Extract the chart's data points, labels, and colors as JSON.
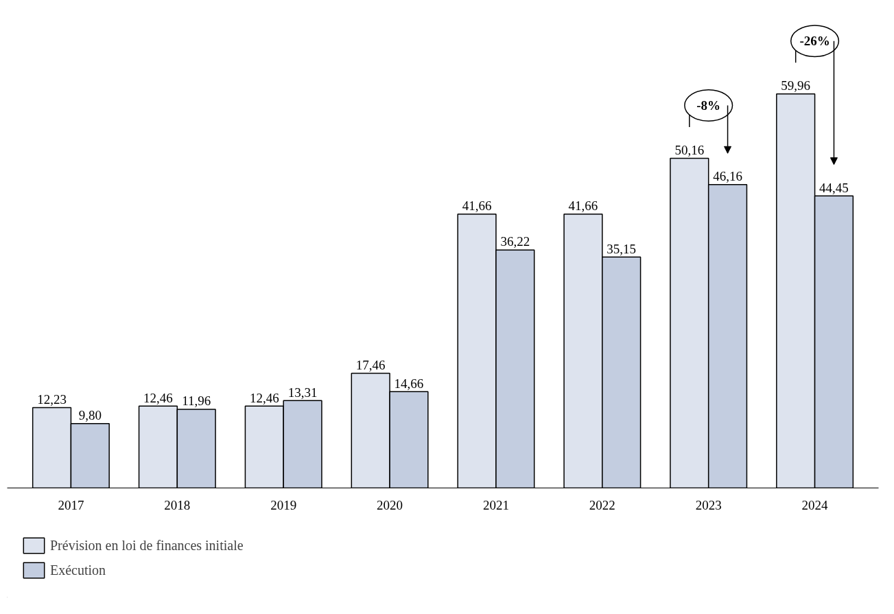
{
  "chart_data": {
    "type": "bar",
    "categories": [
      "2017",
      "2018",
      "2019",
      "2020",
      "2021",
      "2022",
      "2023",
      "2024"
    ],
    "series": [
      {
        "name": "Prévision en loi de finances initiale",
        "color": "#dde3ee",
        "values": [
          12.23,
          12.46,
          12.46,
          17.46,
          41.66,
          41.66,
          50.16,
          59.96
        ],
        "value_labels": [
          "12,23",
          "12,46",
          "12,46",
          "17,46",
          "41,66",
          "41,66",
          "50,16",
          "59,96"
        ]
      },
      {
        "name": "Exécution",
        "color": "#c3cde0",
        "values": [
          9.8,
          11.96,
          13.31,
          14.66,
          36.22,
          35.15,
          46.16,
          44.45
        ],
        "value_labels": [
          "9,80",
          "11,96",
          "13,31",
          "14,66",
          "36,22",
          "35,15",
          "46,16",
          "44,45"
        ]
      }
    ],
    "legend": "bottom left",
    "annotations": [
      "-8%",
      "-26%"
    ]
  }
}
